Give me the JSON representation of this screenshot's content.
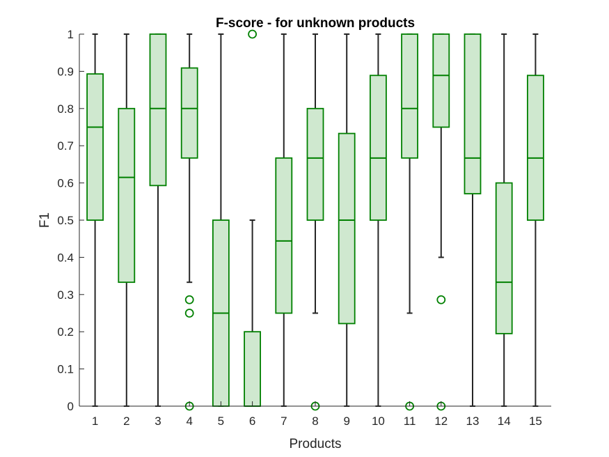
{
  "chart_data": {
    "type": "boxplot",
    "title": "F-score - for unknown products",
    "xlabel": "Products",
    "ylabel": "F1",
    "ylim": [
      0,
      1
    ],
    "yticks": [
      0,
      0.1,
      0.2,
      0.3,
      0.4,
      0.5,
      0.6,
      0.7,
      0.8,
      0.9,
      1
    ],
    "ytick_labels": [
      "0",
      "0.1",
      "0.2",
      "0.3",
      "0.4",
      "0.5",
      "0.6",
      "0.7",
      "0.8",
      "0.9",
      "1"
    ],
    "categories": [
      "1",
      "2",
      "3",
      "4",
      "5",
      "6",
      "7",
      "8",
      "9",
      "10",
      "11",
      "12",
      "13",
      "14",
      "15"
    ],
    "grid": false,
    "colors": {
      "box_edge": "#008000",
      "box_fill": "#cfe8cf",
      "whisker": "#262626",
      "axis": "#262626"
    },
    "boxes": [
      {
        "category": "1",
        "whisker_low": 0,
        "q1": 0.5,
        "median": 0.75,
        "q3": 0.893,
        "whisker_high": 1,
        "outliers": []
      },
      {
        "category": "2",
        "whisker_low": 0,
        "q1": 0.333,
        "median": 0.615,
        "q3": 0.8,
        "whisker_high": 1,
        "outliers": []
      },
      {
        "category": "3",
        "whisker_low": 0,
        "q1": 0.593,
        "median": 0.8,
        "q3": 1,
        "whisker_high": 1,
        "outliers": []
      },
      {
        "category": "4",
        "whisker_low": 0.333,
        "q1": 0.667,
        "median": 0.8,
        "q3": 0.909,
        "whisker_high": 1,
        "outliers": [
          0.286,
          0.25,
          0
        ]
      },
      {
        "category": "5",
        "whisker_low": 0,
        "q1": 0,
        "median": 0.25,
        "q3": 0.5,
        "whisker_high": 1,
        "outliers": []
      },
      {
        "category": "6",
        "whisker_low": 0,
        "q1": 0,
        "median": 0,
        "q3": 0.2,
        "whisker_high": 0.5,
        "outliers": [
          1
        ]
      },
      {
        "category": "7",
        "whisker_low": 0,
        "q1": 0.25,
        "median": 0.444,
        "q3": 0.667,
        "whisker_high": 1,
        "outliers": []
      },
      {
        "category": "8",
        "whisker_low": 0.25,
        "q1": 0.5,
        "median": 0.667,
        "q3": 0.8,
        "whisker_high": 1,
        "outliers": [
          0
        ]
      },
      {
        "category": "9",
        "whisker_low": 0,
        "q1": 0.222,
        "median": 0.5,
        "q3": 0.733,
        "whisker_high": 1,
        "outliers": []
      },
      {
        "category": "10",
        "whisker_low": 0,
        "q1": 0.5,
        "median": 0.667,
        "q3": 0.889,
        "whisker_high": 1,
        "outliers": []
      },
      {
        "category": "11",
        "whisker_low": 0.25,
        "q1": 0.667,
        "median": 0.8,
        "q3": 1,
        "whisker_high": 1,
        "outliers": [
          0
        ]
      },
      {
        "category": "12",
        "whisker_low": 0.4,
        "q1": 0.75,
        "median": 0.889,
        "q3": 1,
        "whisker_high": 1,
        "outliers": [
          0.286,
          0
        ]
      },
      {
        "category": "13",
        "whisker_low": 0,
        "q1": 0.571,
        "median": 0.667,
        "q3": 1,
        "whisker_high": 1,
        "outliers": []
      },
      {
        "category": "14",
        "whisker_low": 0,
        "q1": 0.195,
        "median": 0.333,
        "q3": 0.6,
        "whisker_high": 1,
        "outliers": []
      },
      {
        "category": "15",
        "whisker_low": 0,
        "q1": 0.5,
        "median": 0.667,
        "q3": 0.889,
        "whisker_high": 1,
        "outliers": []
      }
    ]
  }
}
